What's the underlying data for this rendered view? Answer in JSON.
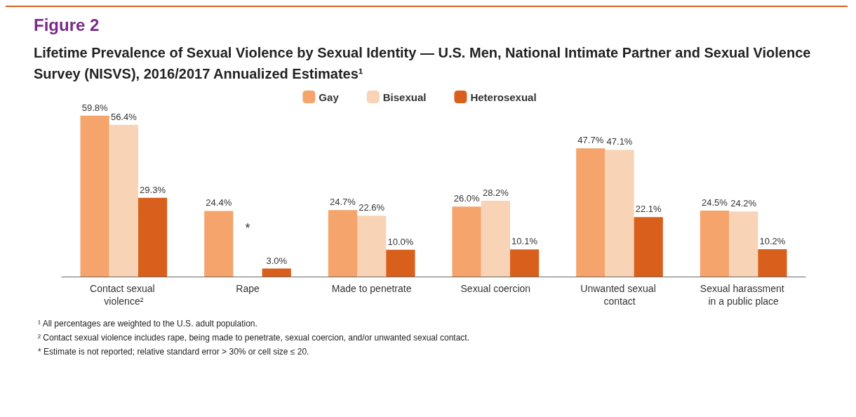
{
  "chart_data": {
    "type": "bar",
    "title": "Figure 2",
    "subtitle": "Lifetime Prevalence of Sexual Violence by Sexual Identity — U.S. Men, National Intimate Partner and Sexual Violence Survey (NISVS), 2016/2017 Annualized Estimates¹",
    "categories": [
      "Contact sexual violence²",
      "Rape",
      "Made to penetrate",
      "Sexual coercion",
      "Unwanted sexual contact",
      "Sexual harassment in a public place"
    ],
    "series": [
      {
        "name": "Gay",
        "color": "#f5a46b",
        "values": [
          59.8,
          24.4,
          24.7,
          26.0,
          47.7,
          24.5
        ],
        "value_labels": [
          "59.8%",
          "24.4%",
          "24.7%",
          "26.0%",
          "47.7%",
          "24.5%"
        ]
      },
      {
        "name": "Bisexual",
        "color": "#f8d3b6",
        "values": [
          56.4,
          null,
          22.6,
          28.2,
          47.1,
          24.2
        ],
        "value_labels": [
          "56.4%",
          "*",
          "22.6%",
          "28.2%",
          "47.1%",
          "24.2%"
        ]
      },
      {
        "name": "Heterosexual",
        "color": "#d9601c",
        "values": [
          29.3,
          3.0,
          10.0,
          10.1,
          22.1,
          10.2
        ],
        "value_labels": [
          "29.3%",
          "3.0%",
          "10.0%",
          "10.1%",
          "22.1%",
          "10.2%"
        ]
      }
    ],
    "legend": "top",
    "annotations": [
      "¹ All percentages are weighted to the U.S. adult population.",
      "² Contact sexual violence includes rape, being made to penetrate, sexual coercion, and/or unwanted sexual contact.",
      "* Estimate is not reported; relative standard error > 30% or cell size ≤ 20."
    ]
  }
}
